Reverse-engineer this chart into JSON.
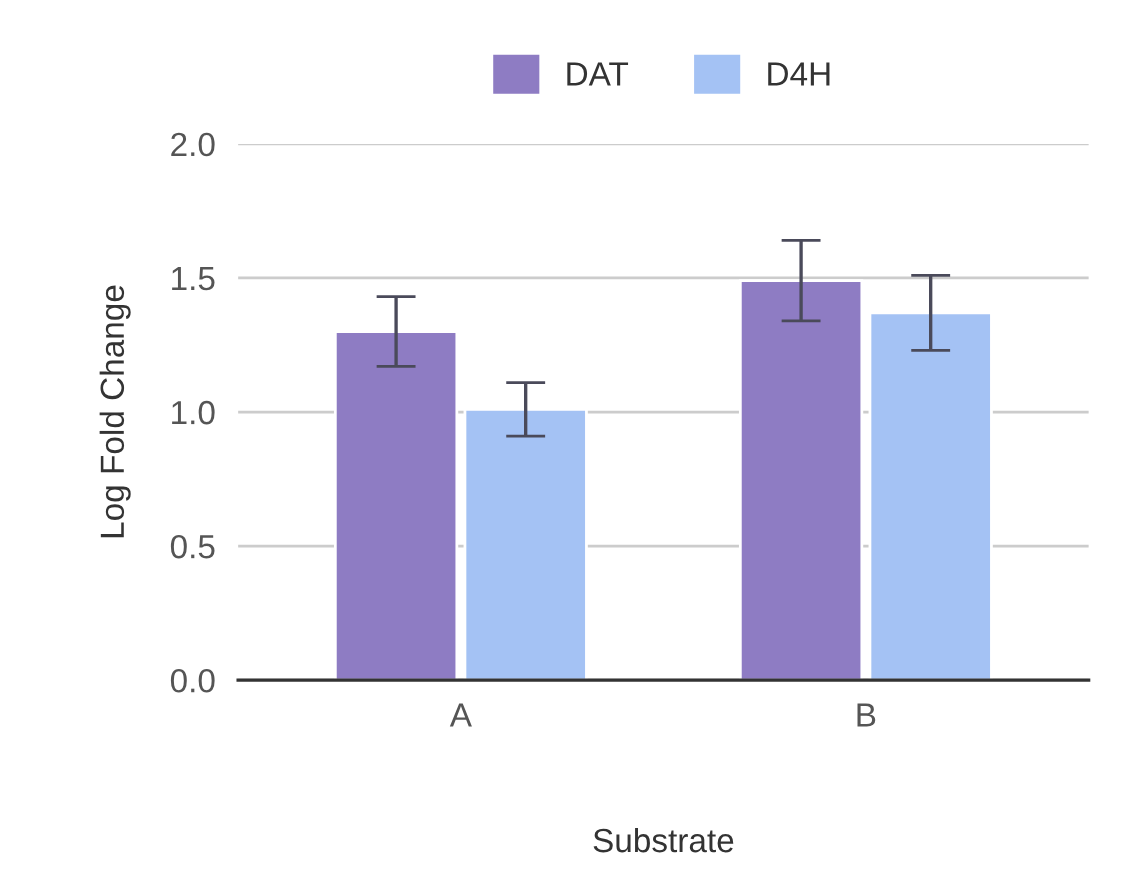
{
  "chart_data": {
    "type": "bar",
    "xlabel": "Substrate",
    "ylabel": "Log Fold Change",
    "categories": [
      "A",
      "B"
    ],
    "series": [
      {
        "name": "DAT",
        "color": "#8e7cc3",
        "values": [
          1.3,
          1.49
        ],
        "errors": [
          0.13,
          0.15
        ]
      },
      {
        "name": "D4H",
        "color": "#a4c2f4",
        "values": [
          1.01,
          1.37
        ],
        "errors": [
          0.1,
          0.14
        ]
      }
    ],
    "ylim": [
      0,
      2.0
    ],
    "yticks": [
      {
        "value": 0,
        "label": "0.0"
      },
      {
        "value": 0.5,
        "label": "0.5"
      },
      {
        "value": 1.0,
        "label": "1.0"
      },
      {
        "value": 1.5,
        "label": "1.5"
      },
      {
        "value": 2.0,
        "label": "2.0"
      }
    ],
    "grid": "y",
    "legend": "top"
  }
}
